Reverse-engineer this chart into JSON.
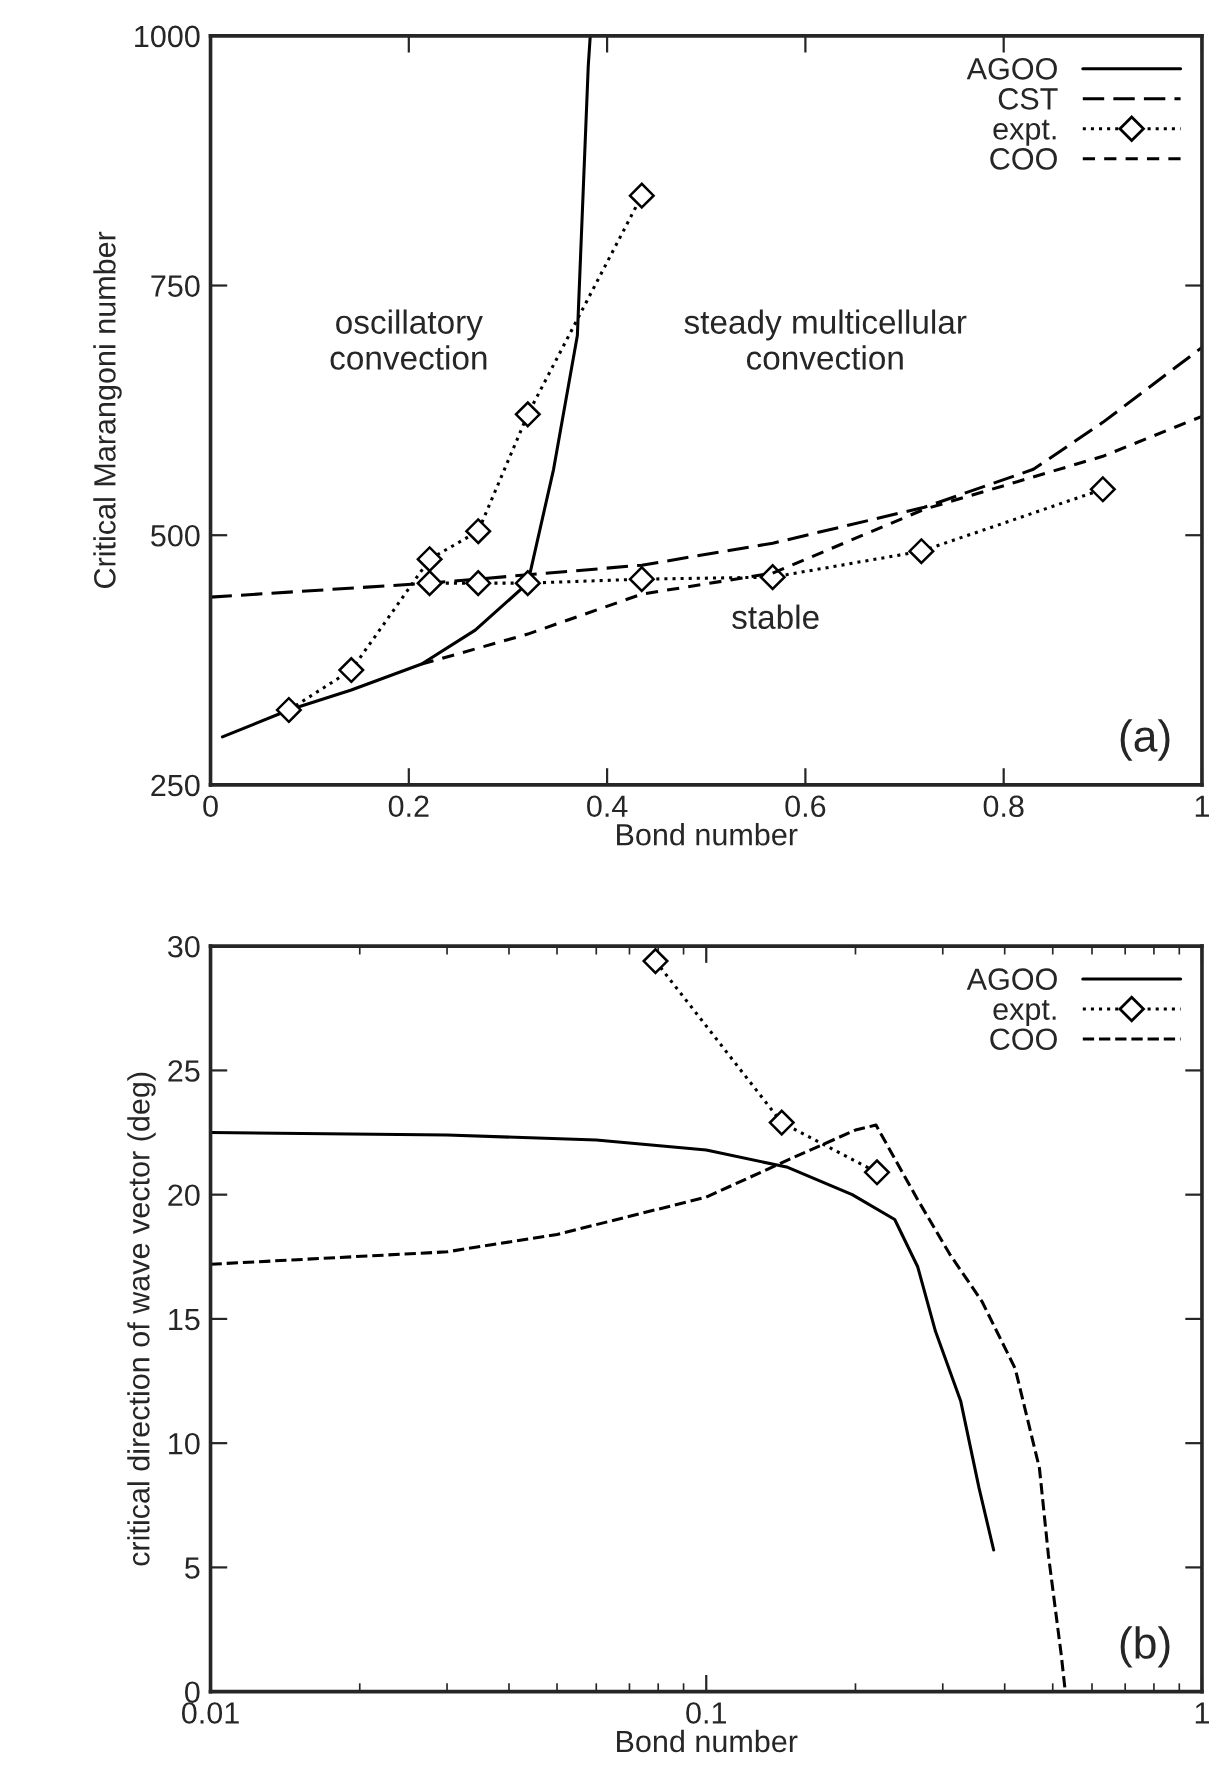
{
  "chart_data": [
    {
      "type": "line",
      "xlabel": "Bond number",
      "ylabel": "Critical Marangoni number",
      "xlim": [
        0,
        1
      ],
      "ylim": [
        250,
        1000
      ],
      "xticks": [
        0,
        0.2,
        0.4,
        0.6,
        0.8,
        1
      ],
      "yticks": [
        250,
        500,
        750,
        1000
      ],
      "legend": "top right",
      "grid": false,
      "annotations": [
        "oscillatory\nconvection",
        "steady multicellular\nconvection",
        "stable",
        "(a)"
      ],
      "series": [
        {
          "name": "AGOO",
          "color": "#000000",
          "line_style": "solid",
          "marker": "none",
          "x": [
            0.012,
            0.079,
            0.142,
            0.213,
            0.267,
            0.32,
            0.346,
            0.37,
            0.381,
            0.383
          ],
          "values": [
            298,
            325,
            345,
            371,
            405,
            452,
            566,
            700,
            970,
            1000
          ]
        },
        {
          "name": "CST",
          "color": "#000000",
          "line_style": "dashed",
          "marker": "none",
          "x": [
            0,
            0.22,
            0.435,
            0.567,
            0.72,
            0.83,
            0.9,
            1
          ],
          "values": [
            438,
            452,
            470,
            492,
            528,
            566,
            613,
            688
          ]
        },
        {
          "name": "expt.",
          "color": "#000000",
          "line_style": "dotted",
          "marker": "diamond",
          "x": [
            0.079,
            0.142,
            0.221,
            0.27,
            0.32,
            0.435,
            null,
            0.221,
            0.27,
            0.32,
            0.435,
            0.567,
            0.717,
            0.9
          ],
          "values": [
            325,
            365,
            476,
            504,
            621,
            840,
            null,
            452,
            452,
            452,
            456,
            458,
            484,
            546
          ]
        },
        {
          "name": "COO",
          "color": "#000000",
          "line_style": "dashed",
          "marker": "none",
          "x": [
            0.213,
            0.32,
            0.435,
            0.567,
            0.72,
            0.9,
            1
          ],
          "values": [
            371,
            401,
            441,
            462,
            526,
            579,
            619
          ]
        }
      ]
    },
    {
      "type": "line",
      "xlabel": "Bond number",
      "ylabel": "critical direction of wave vector (deg)",
      "log": "x",
      "xlim": [
        0.01,
        1
      ],
      "ylim": [
        0,
        30
      ],
      "xticks": [
        0.01,
        0.1,
        1
      ],
      "yticks": [
        0,
        5,
        10,
        15,
        20,
        25,
        30
      ],
      "legend": "top right",
      "grid": false,
      "annotations": [
        "(b)"
      ],
      "series": [
        {
          "name": "AGOO",
          "color": "#000000",
          "line_style": "solid",
          "marker": "none",
          "x": [
            0.01,
            0.03,
            0.06,
            0.1,
            0.146,
            0.197,
            0.24,
            0.267,
            0.29,
            0.326,
            0.355,
            0.38
          ],
          "values": [
            22.5,
            22.4,
            22.2,
            21.8,
            21.1,
            20.0,
            19.0,
            17.1,
            14.5,
            11.7,
            8.2,
            5.7
          ]
        },
        {
          "name": "expt.",
          "color": "#000000",
          "line_style": "dotted",
          "marker": "diamond",
          "x": [
            0.079,
            0.142,
            0.221
          ],
          "values": [
            29.4,
            22.9,
            20.9
          ]
        },
        {
          "name": "COO",
          "color": "#000000",
          "line_style": "dashed",
          "marker": "none",
          "x": [
            0.01,
            0.03,
            0.05,
            0.1,
            0.15,
            0.2,
            0.22,
            0.267,
            0.31,
            0.36,
            0.42,
            0.47,
            0.49,
            0.52,
            0.53
          ],
          "values": [
            17.2,
            17.7,
            18.4,
            19.9,
            21.5,
            22.6,
            22.8,
            19.8,
            17.6,
            15.7,
            13.0,
            9.0,
            5.5,
            1.5,
            0
          ]
        }
      ]
    }
  ]
}
